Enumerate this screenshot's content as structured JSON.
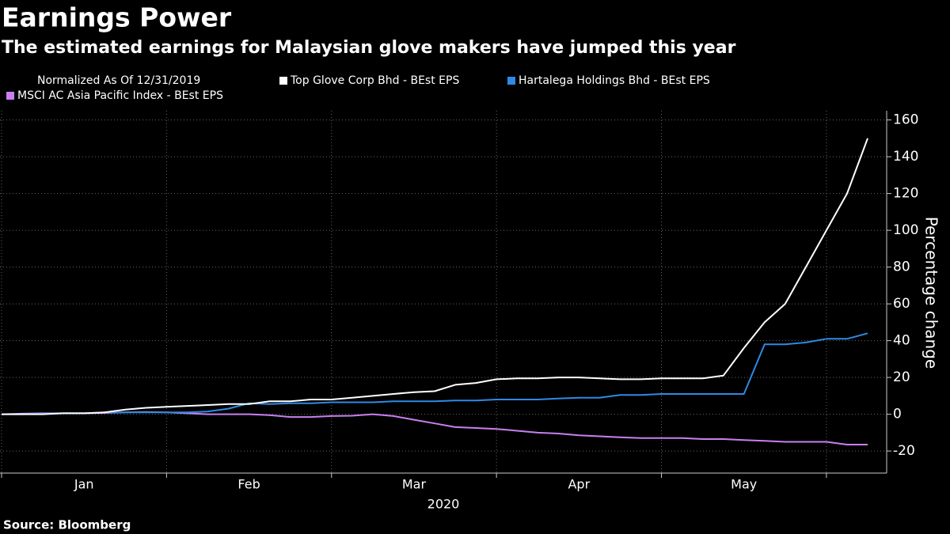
{
  "chart_data": {
    "type": "line",
    "title": "Earnings Power",
    "subtitle": "The estimated earnings for Malaysian glove makers have jumped this year",
    "legend_title": "Normalized As Of 12/31/2019",
    "source": "Source: Bloomberg",
    "xlabel": "2020",
    "ylabel": "Percentage change",
    "categories": [
      null,
      null,
      null,
      null,
      "Jan",
      null,
      null,
      null,
      null,
      null,
      null,
      null,
      "Feb",
      null,
      null,
      null,
      null,
      null,
      null,
      null,
      "Mar",
      null,
      null,
      null,
      null,
      null,
      null,
      null,
      "Apr",
      null,
      null,
      null,
      null,
      null,
      null,
      null,
      "May",
      null,
      null,
      null,
      null,
      null,
      null
    ],
    "series": [
      {
        "name": "Top Glove Corp Bhd - BEst EPS",
        "color": "#ffffff",
        "values": [
          0,
          0,
          0,
          0.5,
          0.5,
          1,
          2.5,
          3.5,
          4,
          4.5,
          5,
          5.5,
          5.5,
          7,
          7,
          8,
          8,
          9,
          10,
          11,
          12,
          12.5,
          16,
          17,
          19,
          19.5,
          19.5,
          20,
          20,
          19.5,
          19,
          19,
          19.5,
          19.5,
          19.5,
          21,
          36,
          50,
          60,
          80,
          100,
          120,
          150
        ]
      },
      {
        "name": "Hartalega Holdings Bhd - BEst EPS",
        "color": "#2e8ae6",
        "values": [
          0,
          0,
          0.3,
          0.5,
          0.5,
          1,
          1,
          1,
          1,
          1,
          1.5,
          3,
          6,
          5.5,
          6,
          6,
          6.5,
          6.5,
          6.5,
          7,
          7,
          7,
          7.5,
          7.5,
          8,
          8,
          8,
          8.5,
          9,
          9,
          10.5,
          10.5,
          11,
          11,
          11,
          11,
          11,
          38,
          38,
          39,
          41,
          41,
          44
        ]
      },
      {
        "name": "MSCI AC Asia Pacific Index - BEst EPS",
        "color": "#c880f0",
        "values": [
          0,
          0.3,
          0.5,
          0.5,
          0.5,
          0.7,
          1,
          1.2,
          1,
          0.5,
          0,
          0,
          0,
          -0.5,
          -1.5,
          -1.5,
          -1,
          -0.8,
          0,
          -1,
          -3,
          -5,
          -7,
          -7.5,
          -8,
          -9,
          -10,
          -10.5,
          -11.5,
          -12,
          -12.5,
          -13,
          -13,
          -13,
          -13.5,
          -13.5,
          -14,
          -14.5,
          -15,
          -15,
          -15,
          -16.5,
          -16.5
        ]
      }
    ],
    "ylim": [
      -32,
      165
    ],
    "yticks": [
      -20,
      0,
      20,
      40,
      60,
      80,
      100,
      120,
      140,
      160
    ],
    "grid": true
  }
}
